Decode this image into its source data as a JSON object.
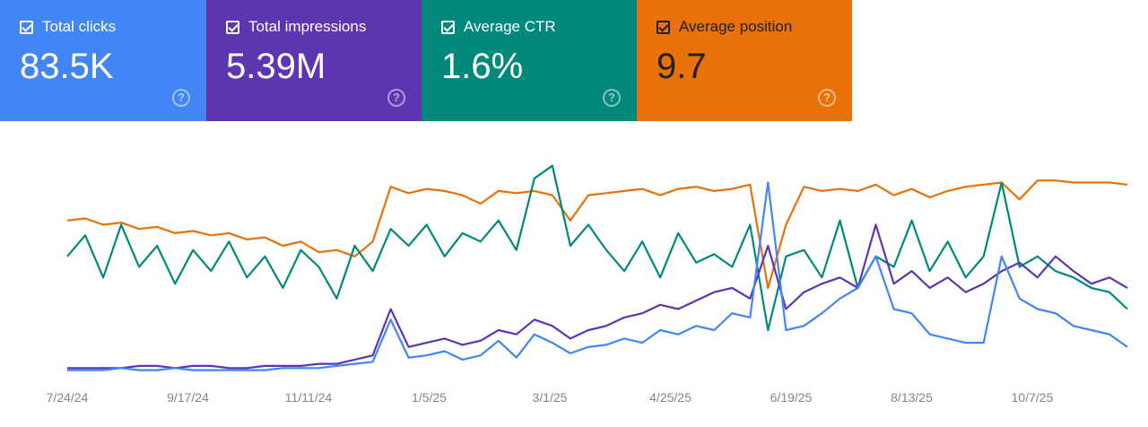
{
  "metrics": [
    {
      "label": "Total clicks",
      "value": "83.5K",
      "color": "#4285f4",
      "checked": true
    },
    {
      "label": "Total impressions",
      "value": "5.39M",
      "color": "#5e35b1",
      "checked": true
    },
    {
      "label": "Average CTR",
      "value": "1.6%",
      "color": "#00897b",
      "checked": true
    },
    {
      "label": "Average position",
      "value": "9.7",
      "color": "#e8710a",
      "checked": true
    }
  ],
  "help_icon": "?",
  "chart_data": {
    "type": "line",
    "title": "",
    "xlabel": "",
    "ylabel": "",
    "x_ticks": [
      "7/24/24",
      "9/17/24",
      "11/11/24",
      "1/5/25",
      "3/1/25",
      "4/25/25",
      "6/19/25",
      "8/13/25",
      "10/7/25"
    ],
    "x_range": [
      "7/24/24",
      "11/20/25"
    ],
    "y_scale": "relative (0-100, each metric normalized; position axis inverted)",
    "ylim": [
      0,
      100
    ],
    "grid": false,
    "series": [
      {
        "name": "Average position",
        "color": "#e8710a",
        "values": [
          72,
          73,
          70,
          71,
          68,
          69,
          66,
          67,
          65,
          66,
          63,
          64,
          60,
          62,
          57,
          58,
          55,
          62,
          88,
          85,
          87,
          86,
          84,
          80,
          86,
          85,
          86,
          84,
          72,
          84,
          85,
          86,
          87,
          84,
          87,
          88,
          86,
          87,
          89,
          40,
          70,
          88,
          86,
          87,
          86,
          89,
          84,
          87,
          83,
          86,
          88,
          89,
          90,
          82,
          91,
          91,
          90,
          90,
          90,
          89
        ]
      },
      {
        "name": "Average CTR",
        "color": "#00897b",
        "values": [
          55,
          65,
          45,
          70,
          50,
          60,
          42,
          58,
          48,
          62,
          45,
          55,
          40,
          58,
          50,
          35,
          60,
          48,
          68,
          60,
          70,
          55,
          66,
          62,
          72,
          58,
          92,
          98,
          60,
          70,
          58,
          48,
          62,
          45,
          66,
          52,
          56,
          50,
          70,
          20,
          55,
          58,
          45,
          72,
          40,
          55,
          50,
          72,
          48,
          62,
          45,
          55,
          90,
          50,
          55,
          48,
          45,
          40,
          38,
          30
        ]
      },
      {
        "name": "Total impressions",
        "color": "#5e35b1",
        "values": [
          2,
          2,
          2,
          2,
          3,
          3,
          2,
          3,
          3,
          2,
          2,
          3,
          3,
          3,
          4,
          4,
          6,
          8,
          30,
          12,
          14,
          16,
          13,
          15,
          20,
          18,
          25,
          22,
          16,
          20,
          22,
          26,
          28,
          32,
          30,
          34,
          38,
          40,
          35,
          60,
          30,
          38,
          42,
          45,
          40,
          70,
          42,
          48,
          40,
          45,
          38,
          42,
          48,
          52,
          45,
          55,
          48,
          42,
          45,
          40
        ]
      },
      {
        "name": "Total clicks",
        "color": "#4285f4",
        "values": [
          1,
          1,
          1,
          2,
          1,
          1,
          2,
          1,
          1,
          1,
          1,
          1,
          2,
          2,
          2,
          3,
          4,
          5,
          25,
          7,
          8,
          10,
          6,
          8,
          15,
          7,
          18,
          14,
          9,
          12,
          13,
          16,
          14,
          20,
          18,
          22,
          20,
          28,
          26,
          90,
          20,
          22,
          28,
          35,
          40,
          55,
          30,
          28,
          18,
          16,
          14,
          14,
          55,
          35,
          30,
          28,
          22,
          20,
          18,
          12
        ]
      }
    ]
  }
}
